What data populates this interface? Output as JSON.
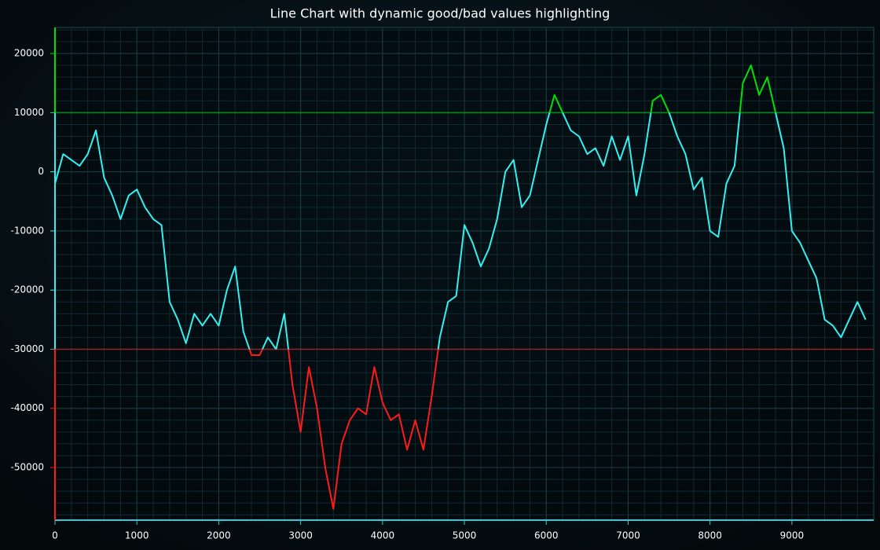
{
  "chart_data": {
    "type": "line",
    "title": "Line Chart with dynamic good/bad values highlighting",
    "x": [
      0,
      100,
      200,
      300,
      400,
      500,
      600,
      700,
      800,
      900,
      1000,
      1100,
      1200,
      1300,
      1400,
      1500,
      1600,
      1700,
      1800,
      1900,
      2000,
      2100,
      2200,
      2300,
      2400,
      2500,
      2600,
      2700,
      2800,
      2900,
      3000,
      3100,
      3200,
      3300,
      3400,
      3500,
      3600,
      3700,
      3800,
      3900,
      4000,
      4100,
      4200,
      4300,
      4400,
      4500,
      4600,
      4700,
      4800,
      4900,
      5000,
      5100,
      5200,
      5300,
      5400,
      5500,
      5600,
      5700,
      5800,
      5900,
      6000,
      6100,
      6200,
      6300,
      6400,
      6500,
      6600,
      6700,
      6800,
      6900,
      7000,
      7100,
      7200,
      7300,
      7400,
      7500,
      7600,
      7700,
      7800,
      7900,
      8000,
      8100,
      8200,
      8300,
      8400,
      8500,
      8600,
      8700,
      8800,
      8900,
      9000,
      9100,
      9200,
      9300,
      9400,
      9500,
      9600,
      9700,
      9800,
      9900
    ],
    "values": [
      -2000,
      3000,
      2000,
      1000,
      3000,
      7000,
      -1000,
      -4000,
      -8000,
      -4000,
      -3000,
      -6000,
      -8000,
      -9000,
      -22000,
      -25000,
      -29000,
      -24000,
      -26000,
      -24000,
      -26000,
      -20000,
      -16000,
      -27000,
      -31000,
      -31000,
      -28000,
      -30000,
      -24000,
      -36000,
      -44000,
      -33000,
      -40000,
      -50000,
      -57000,
      -46000,
      -42000,
      -40000,
      -41000,
      -33000,
      -39000,
      -42000,
      -41000,
      -47000,
      -42000,
      -47000,
      -38000,
      -28000,
      -22000,
      -21000,
      -9000,
      -12000,
      -16000,
      -13000,
      -8000,
      0,
      2000,
      -6000,
      -4000,
      2000,
      8000,
      13000,
      10000,
      7000,
      6000,
      3000,
      4000,
      1000,
      6000,
      2000,
      6000,
      -4000,
      3000,
      12000,
      13000,
      10000,
      6000,
      3000,
      -3000,
      -1000,
      -10000,
      -11000,
      -2000,
      1000,
      15000,
      18000,
      13000,
      16000,
      10000,
      4000,
      -10000,
      -12000,
      -15000,
      -18000,
      -25000,
      -26000,
      -28000,
      -25000,
      -22000,
      -25000
    ],
    "color": "#33f0f0",
    "good_threshold": 10000,
    "good_color": "#00e000",
    "bad_threshold": -30000,
    "bad_color": "#ff1a1a",
    "xlim": [
      0,
      9999
    ],
    "ylim": [
      -58900,
      24400
    ],
    "xticks": [
      0,
      1000,
      2000,
      3000,
      4000,
      5000,
      6000,
      7000,
      8000,
      9000
    ],
    "yticks": [
      -50000,
      -40000,
      -30000,
      -20000,
      -10000,
      0,
      10000,
      20000
    ],
    "grid": true
  }
}
